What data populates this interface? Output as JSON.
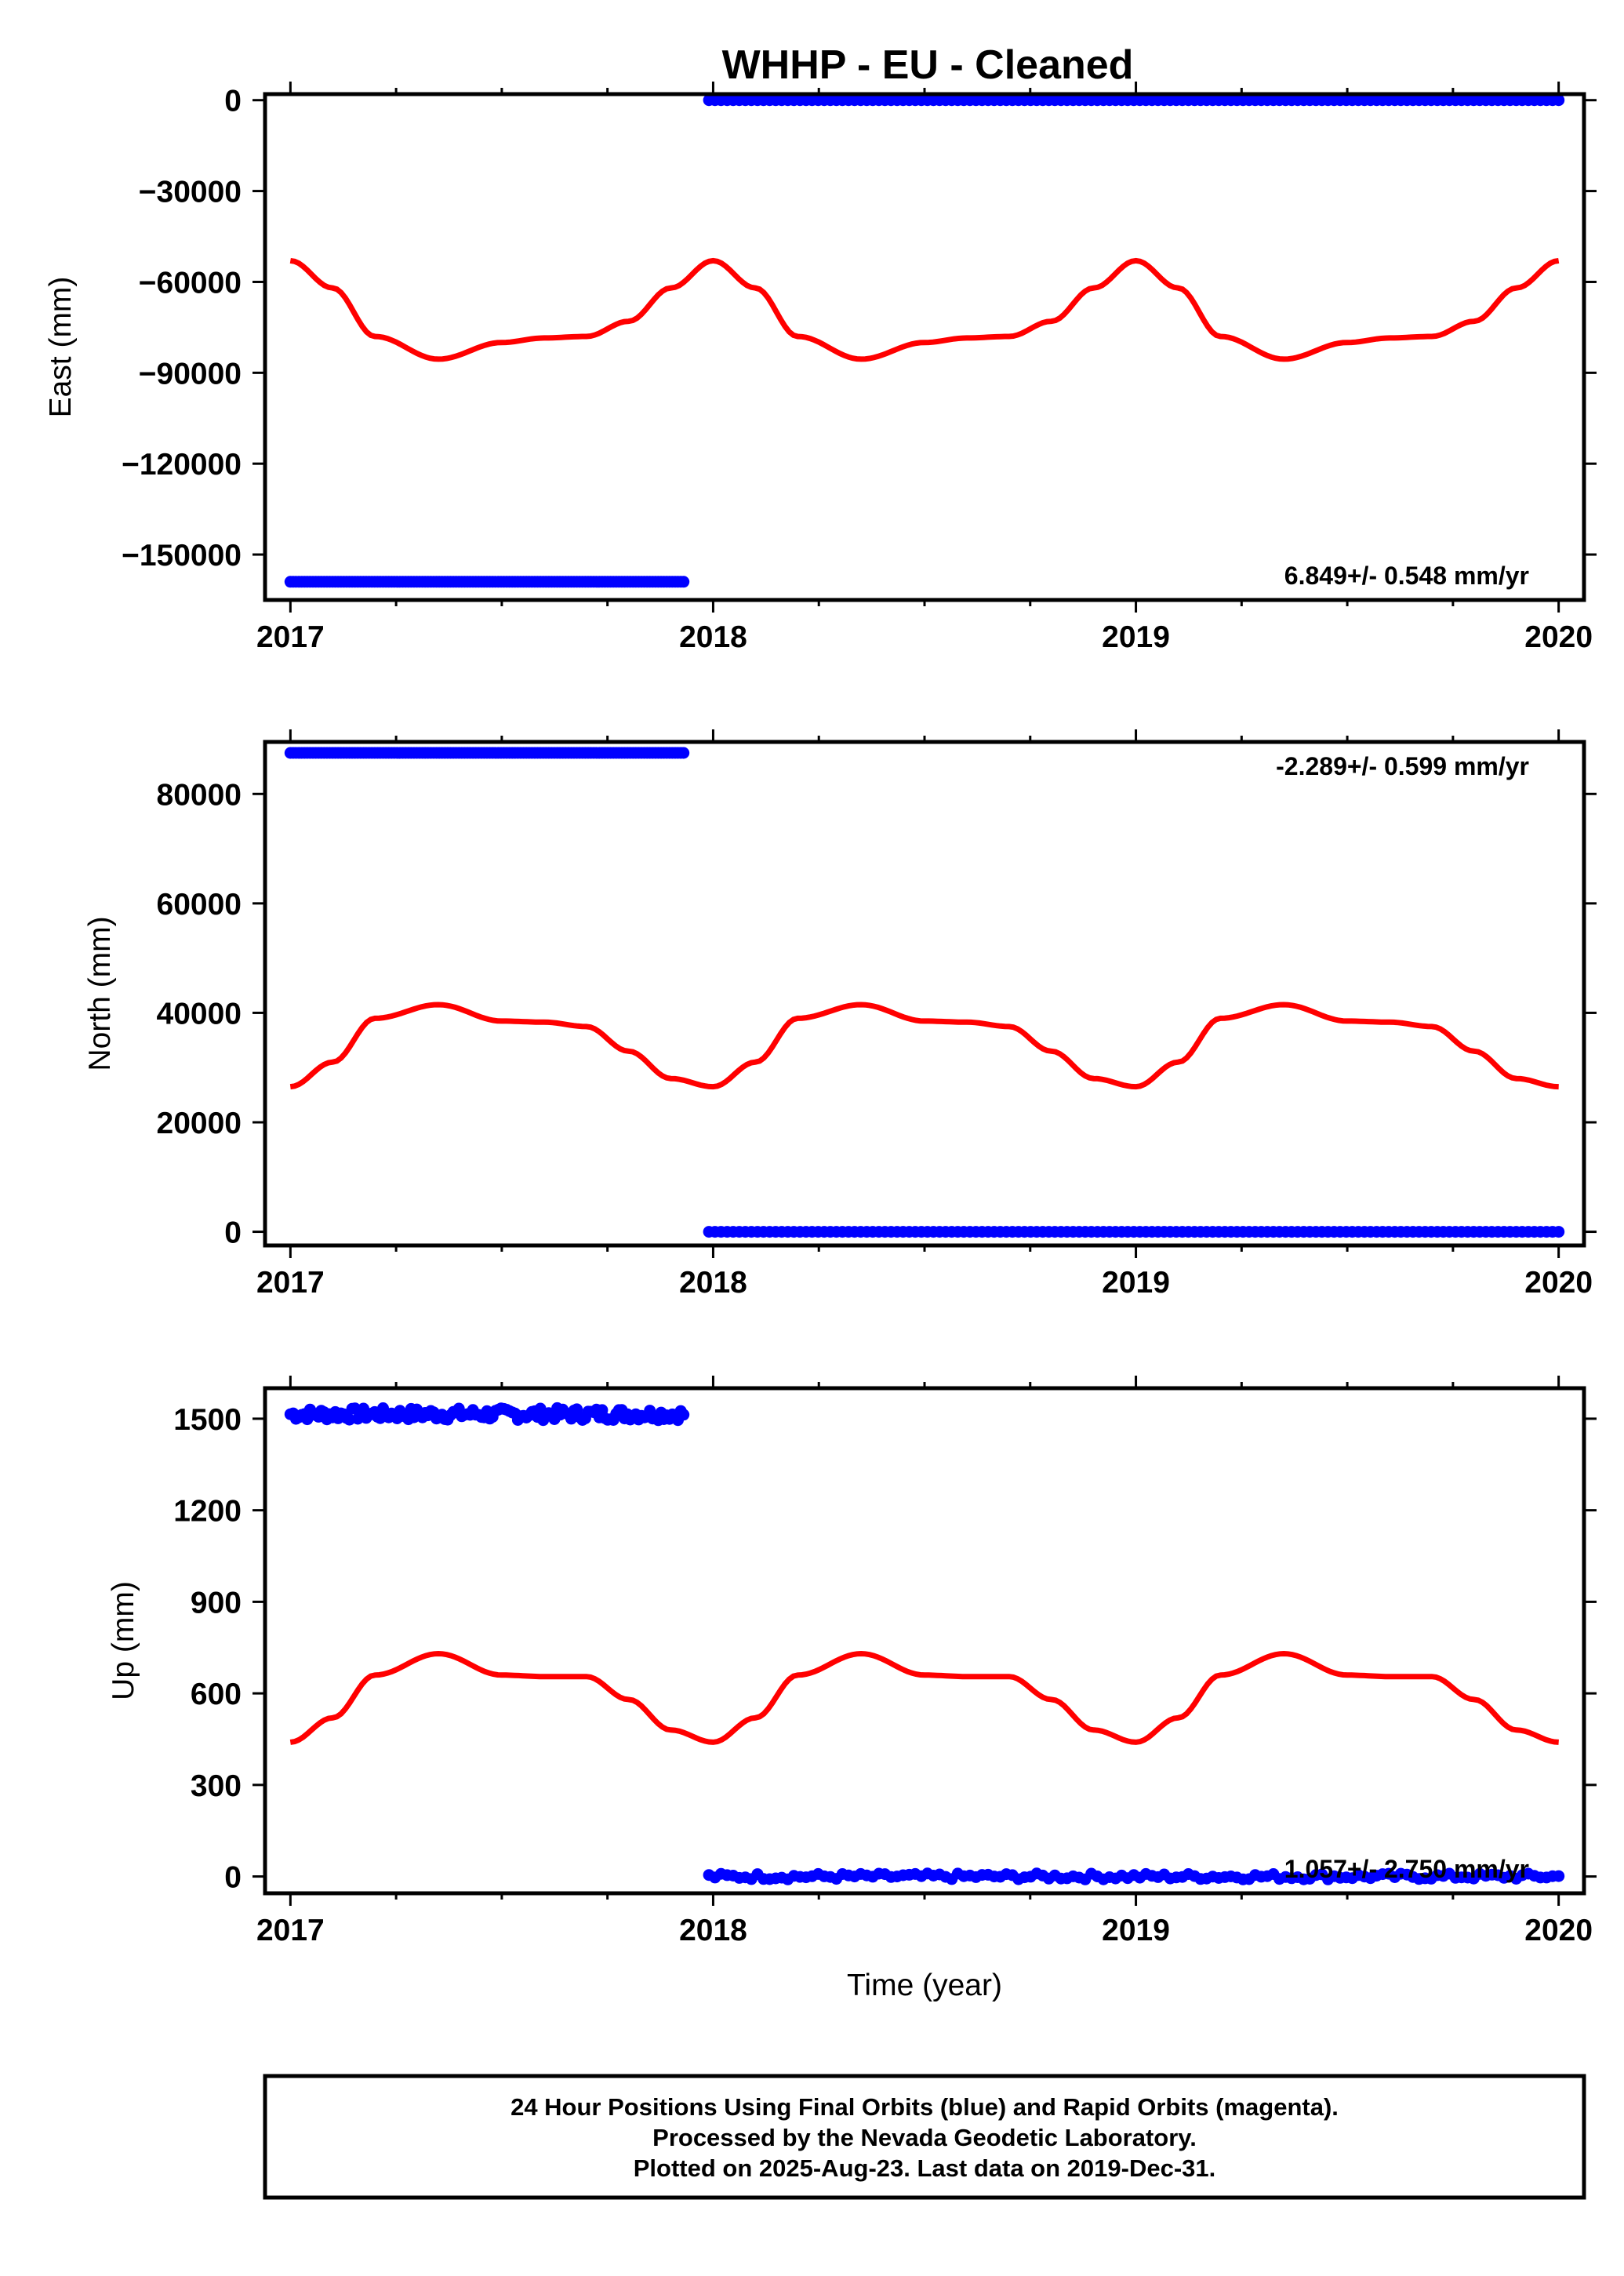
{
  "title": "WHHP  - EU - Cleaned",
  "footer": {
    "line1": "24 Hour Positions Using Final Orbits (blue) and Rapid Orbits (magenta).",
    "line2": "Processed by the Nevada Geodetic Laboratory.",
    "line3": "Plotted on 2025-Aug-23. Last data on 2019-Dec-31."
  },
  "colors": {
    "data": "#0000ff",
    "model": "#ff0000",
    "frame": "#000000"
  },
  "chart_data": [
    {
      "type": "scatter",
      "ylabel": "East (mm)",
      "xlabel": "",
      "xlim": [
        2016.94,
        2020.06
      ],
      "ylim": [
        -165000,
        2000
      ],
      "xticks": [
        "2017",
        "2018",
        "2019",
        "2020"
      ],
      "yticks": [
        "0",
        "−30000",
        "−60000",
        "−90000",
        "−120000",
        "−150000"
      ],
      "ytick_values": [
        0,
        -30000,
        -60000,
        -90000,
        -120000,
        -150000
      ],
      "rate_label": "6.849+/- 0.548 mm/yr",
      "rate_position": "bottom-right",
      "series": [
        {
          "x_start": 2017.0,
          "x_end": 2017.93,
          "y": -159000
        },
        {
          "x_start": 2017.99,
          "x_end": 2020.0,
          "y": 0
        }
      ],
      "model": {
        "x": [
          2017.0,
          2017.1,
          2017.2,
          2017.35,
          2017.5,
          2017.6,
          2017.7,
          2017.8,
          2017.9,
          2018.0
        ],
        "y": [
          -53000,
          -62000,
          -78000,
          -85500,
          -80000,
          -78500,
          -78000,
          -73000,
          -62000,
          -53000
        ]
      }
    },
    {
      "type": "scatter",
      "ylabel": "North (mm)",
      "xlabel": "",
      "xlim": [
        2016.94,
        2020.06
      ],
      "ylim": [
        -2500,
        89500
      ],
      "xticks": [
        "2017",
        "2018",
        "2019",
        "2020"
      ],
      "yticks": [
        "80000",
        "60000",
        "40000",
        "20000",
        "0"
      ],
      "ytick_values": [
        80000,
        60000,
        40000,
        20000,
        0
      ],
      "rate_label": "-2.289+/- 0.599 mm/yr",
      "rate_position": "top-right",
      "series": [
        {
          "x_start": 2017.0,
          "x_end": 2017.93,
          "y": 87500
        },
        {
          "x_start": 2017.99,
          "x_end": 2020.0,
          "y": 0
        }
      ],
      "model": {
        "x": [
          2017.0,
          2017.1,
          2017.2,
          2017.35,
          2017.5,
          2017.6,
          2017.7,
          2017.8,
          2017.9,
          2018.0
        ],
        "y": [
          26500,
          31000,
          39000,
          41500,
          38500,
          38300,
          37500,
          33000,
          28000,
          26500
        ]
      }
    },
    {
      "type": "scatter",
      "ylabel": "Up (mm)",
      "xlabel": "Time (year)",
      "xlim": [
        2016.94,
        2020.06
      ],
      "ylim": [
        -55,
        1600
      ],
      "xticks": [
        "2017",
        "2018",
        "2019",
        "2020"
      ],
      "yticks": [
        "1500",
        "1200",
        "900",
        "600",
        "300",
        "0"
      ],
      "ytick_values": [
        1500,
        1200,
        900,
        600,
        300,
        0
      ],
      "rate_label": "1.057+/- 2.750 mm/yr",
      "rate_position": "bottom-right",
      "series": [
        {
          "x_start": 2017.0,
          "x_end": 2017.93,
          "y": 1515,
          "scatter": 20
        },
        {
          "x_start": 2017.99,
          "x_end": 2020.0,
          "y": 0,
          "scatter": 10
        }
      ],
      "model": {
        "x": [
          2017.0,
          2017.1,
          2017.2,
          2017.35,
          2017.5,
          2017.6,
          2017.7,
          2017.8,
          2017.9,
          2018.0
        ],
        "y": [
          440,
          520,
          660,
          730,
          660,
          655,
          655,
          580,
          480,
          440
        ]
      }
    }
  ]
}
